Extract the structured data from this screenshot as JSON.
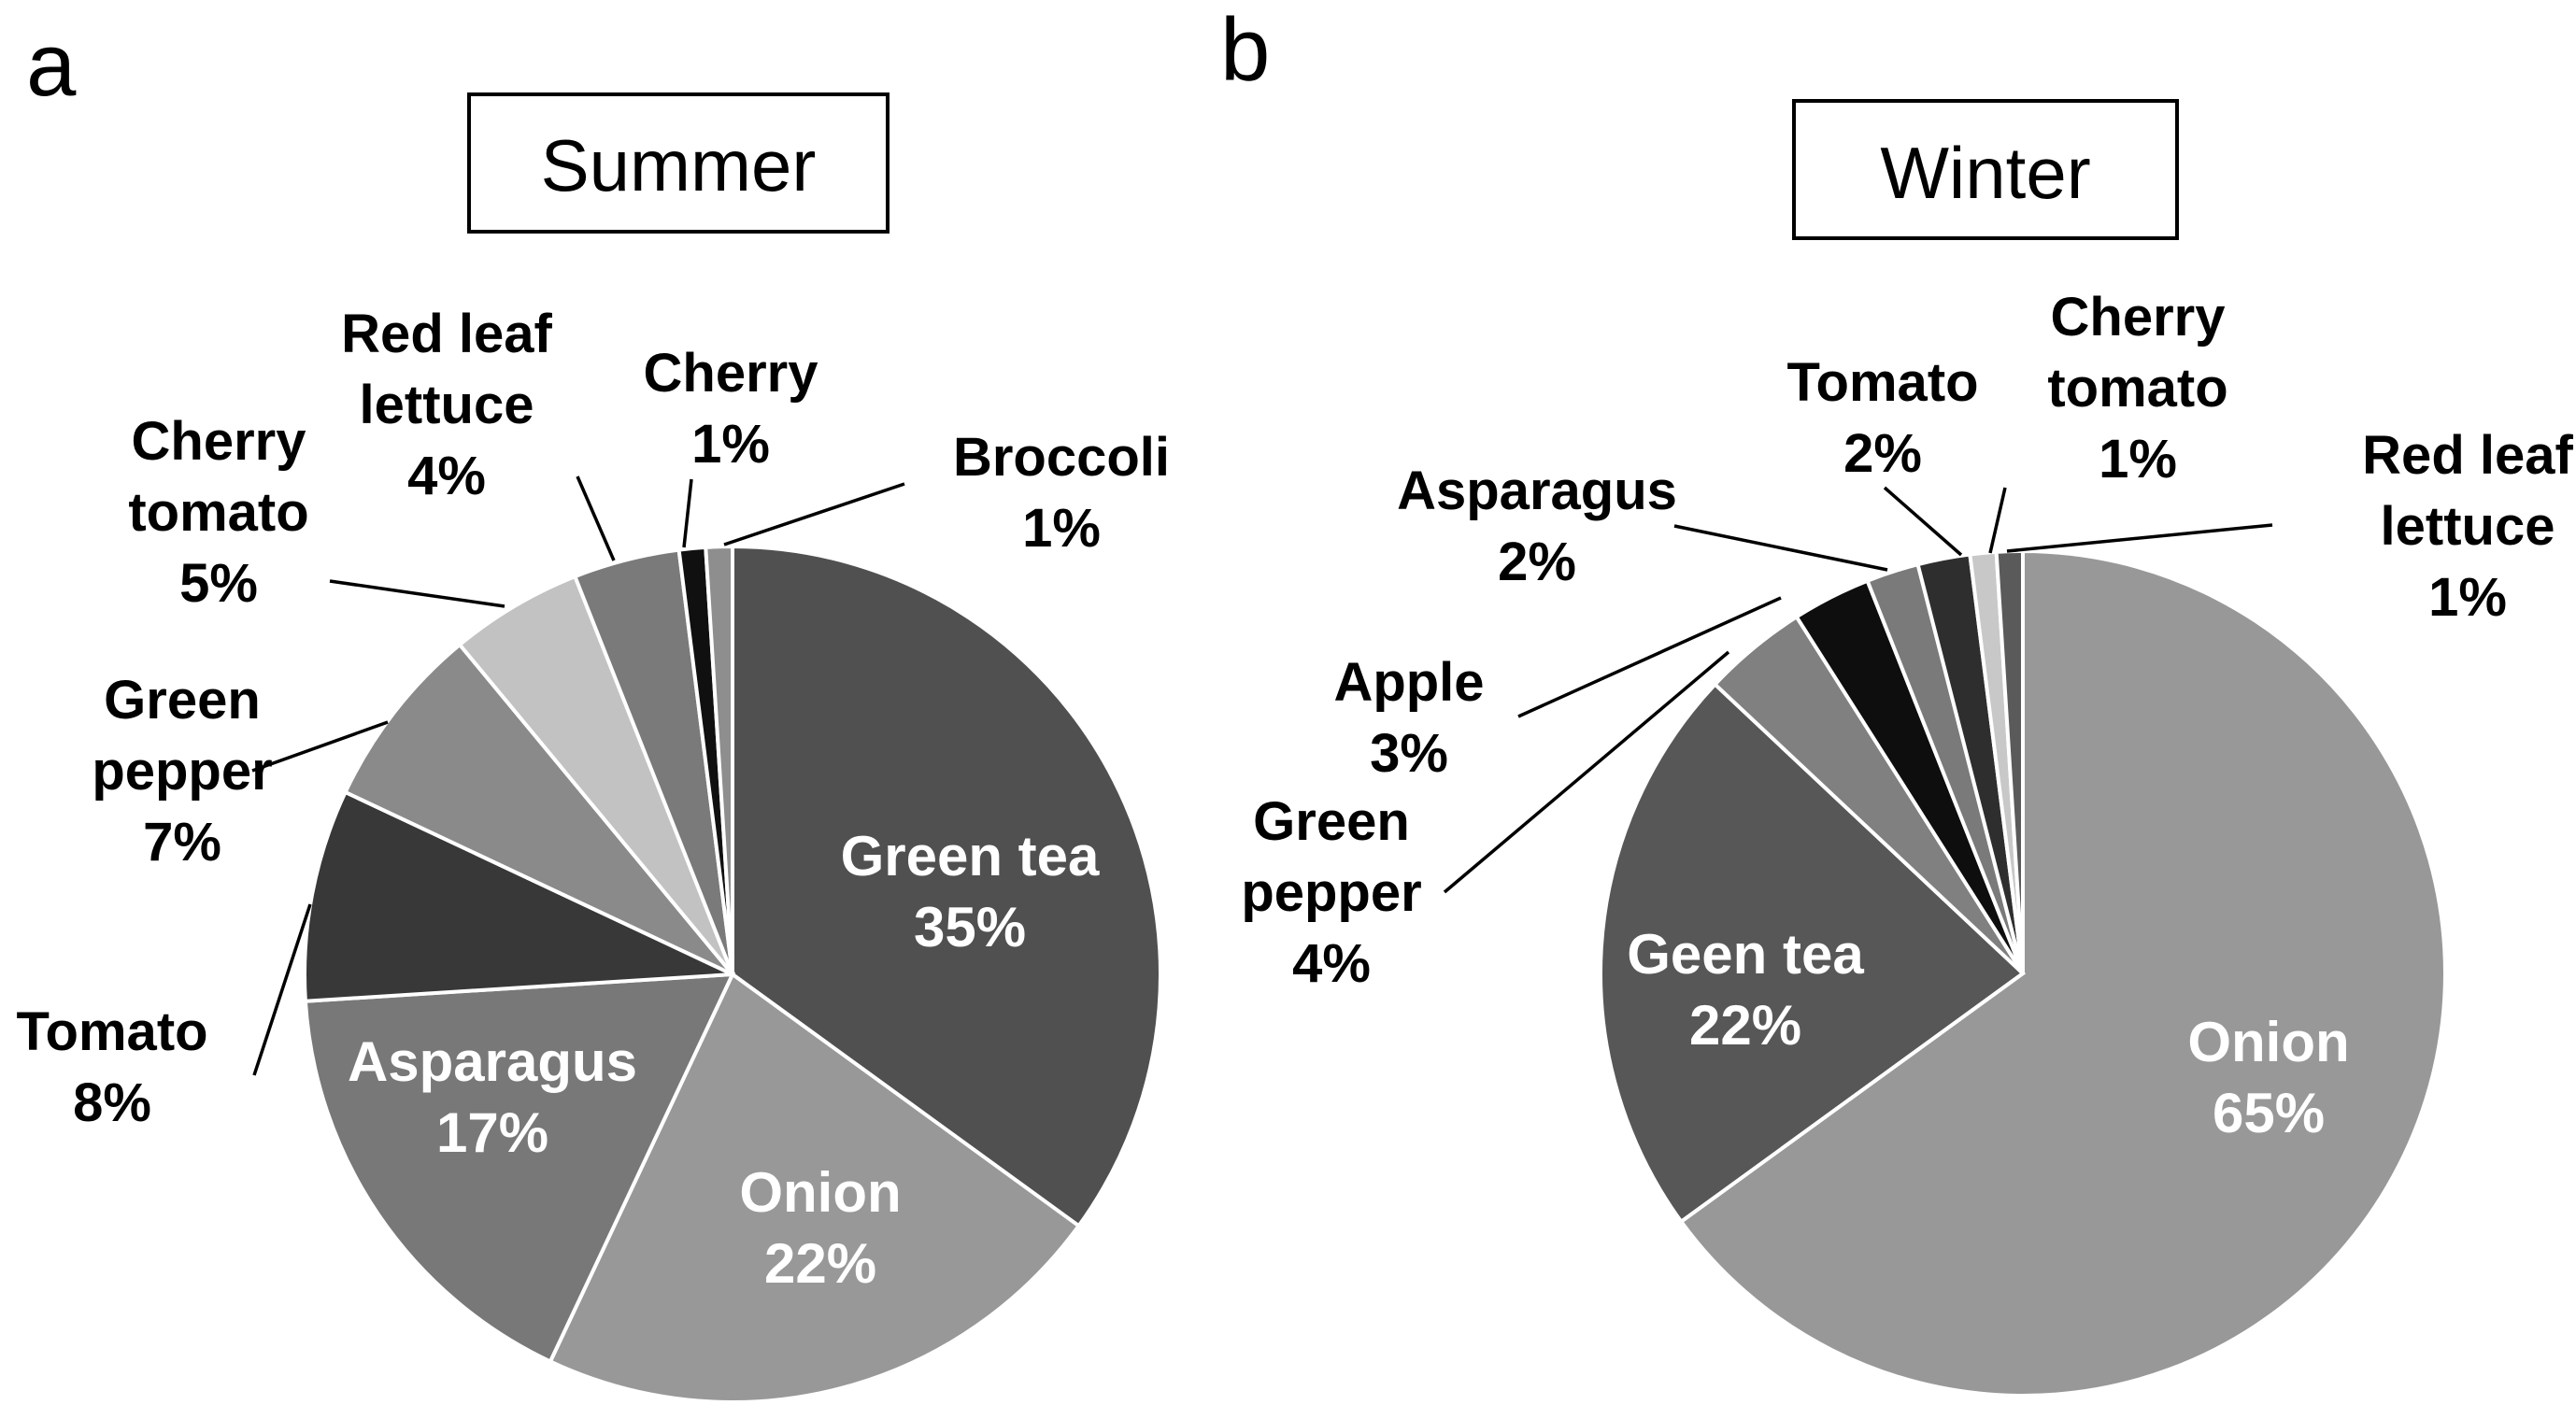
{
  "chart_data": [
    {
      "type": "pie",
      "panel": "a",
      "title": "Summer",
      "slices": [
        {
          "label": [
            "Green tea"
          ],
          "percent_label": "35%",
          "value": 35,
          "color": "#505050"
        },
        {
          "label": [
            "Onion"
          ],
          "percent_label": "22%",
          "value": 22,
          "color": "#989898"
        },
        {
          "label": [
            "Asparagus"
          ],
          "percent_label": "17%",
          "value": 17,
          "color": "#787878"
        },
        {
          "label": [
            "Tomato"
          ],
          "percent_label": "8%",
          "value": 8,
          "color": "#383838"
        },
        {
          "label": [
            "Green",
            "pepper"
          ],
          "percent_label": "7%",
          "value": 7,
          "color": "#8a8a8a"
        },
        {
          "label": [
            "Cherry",
            "tomato"
          ],
          "percent_label": "5%",
          "value": 5,
          "color": "#c2c2c2"
        },
        {
          "label": [
            "Red leaf",
            "lettuce"
          ],
          "percent_label": "4%",
          "value": 4,
          "color": "#7a7a7a"
        },
        {
          "label": [
            "Cherry"
          ],
          "percent_label": "1%",
          "value": 1,
          "color": "#101010"
        },
        {
          "label": [
            "Broccoli"
          ],
          "percent_label": "1%",
          "value": 1,
          "color": "#8e8e8e"
        }
      ]
    },
    {
      "type": "pie",
      "panel": "b",
      "title": "Winter",
      "slices": [
        {
          "label": [
            "Onion"
          ],
          "percent_label": "65%",
          "value": 65,
          "color": "#989898"
        },
        {
          "label": [
            "Geen tea"
          ],
          "percent_label": "22%",
          "value": 22,
          "color": "#575757"
        },
        {
          "label": [
            "Green",
            "pepper"
          ],
          "percent_label": "4%",
          "value": 4,
          "color": "#808080"
        },
        {
          "label": [
            "Apple"
          ],
          "percent_label": "3%",
          "value": 3,
          "color": "#0e0e0e"
        },
        {
          "label": [
            "Asparagus"
          ],
          "percent_label": "2%",
          "value": 2,
          "color": "#7a7a7a"
        },
        {
          "label": [
            "Tomato"
          ],
          "percent_label": "2%",
          "value": 2,
          "color": "#2e2e2e"
        },
        {
          "label": [
            "Cherry",
            "tomato"
          ],
          "percent_label": "1%",
          "value": 1,
          "color": "#c8c8c8"
        },
        {
          "label": [
            "Red leaf",
            "lettuce"
          ],
          "percent_label": "1%",
          "value": 1,
          "color": "#5a5a5a"
        }
      ]
    }
  ]
}
